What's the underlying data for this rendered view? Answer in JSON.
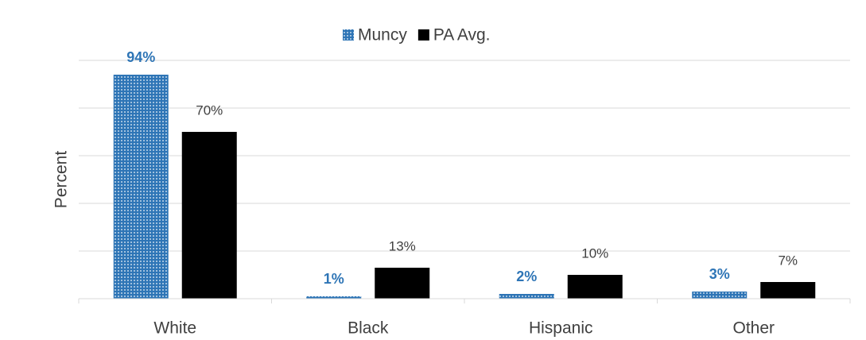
{
  "chart_data": {
    "type": "bar",
    "y_label": "Percent",
    "categories": [
      "White",
      "Black",
      "Hispanic",
      "Other"
    ],
    "series": [
      {
        "name": "Muncy",
        "color": "#2e75b6",
        "values": [
          94,
          1,
          2,
          3
        ],
        "value_labels": [
          "94%",
          "1%",
          "2%",
          "3%"
        ]
      },
      {
        "name": "PA Avg.",
        "color": "#000000",
        "values": [
          70,
          13,
          10,
          7
        ],
        "value_labels": [
          "70%",
          "13%",
          "10%",
          "7%"
        ]
      }
    ],
    "ylim": [
      0,
      100
    ],
    "yticks": [
      0,
      20,
      40,
      60,
      80,
      100
    ],
    "grid": true,
    "legend": "top"
  }
}
